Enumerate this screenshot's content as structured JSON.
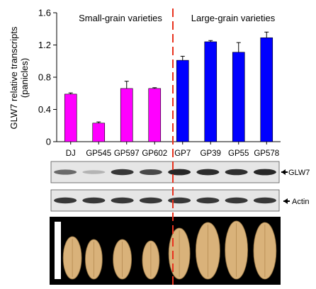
{
  "chart_data": {
    "type": "bar",
    "ylabel": "GLW7 relative transcripts\n(panicles)",
    "ylim": [
      0,
      1.6
    ],
    "yticks": [
      "0",
      "0.4",
      "0.8",
      "1.2",
      "1.6"
    ],
    "grid": false,
    "categories": [
      "DJ",
      "GP545",
      "GP597",
      "GP602",
      "GP7",
      "GP39",
      "GP55",
      "GP578"
    ],
    "values": [
      0.59,
      0.23,
      0.66,
      0.66,
      1.01,
      1.24,
      1.11,
      1.29
    ],
    "errors": [
      0.015,
      0.015,
      0.09,
      0.01,
      0.05,
      0.015,
      0.12,
      0.07
    ],
    "bar_colors": [
      "#ff00ff",
      "#ff00ff",
      "#ff00ff",
      "#ff00ff",
      "#0000ff",
      "#0000ff",
      "#0000ff",
      "#0000ff"
    ],
    "group_labels": [
      "Small-grain varieties",
      "Large-grain varieties"
    ]
  },
  "blots": [
    {
      "label": "GLW7",
      "intensities": [
        0.55,
        0.12,
        0.85,
        0.75,
        0.95,
        0.92,
        0.9,
        0.95
      ]
    },
    {
      "label": "Actin",
      "intensities": [
        0.85,
        0.85,
        0.85,
        0.85,
        0.85,
        0.85,
        0.85,
        0.85
      ]
    }
  ],
  "divider_color": "#e8321e",
  "grain_panel": {
    "background": "#000000",
    "grain_color": "#d9b27a"
  }
}
